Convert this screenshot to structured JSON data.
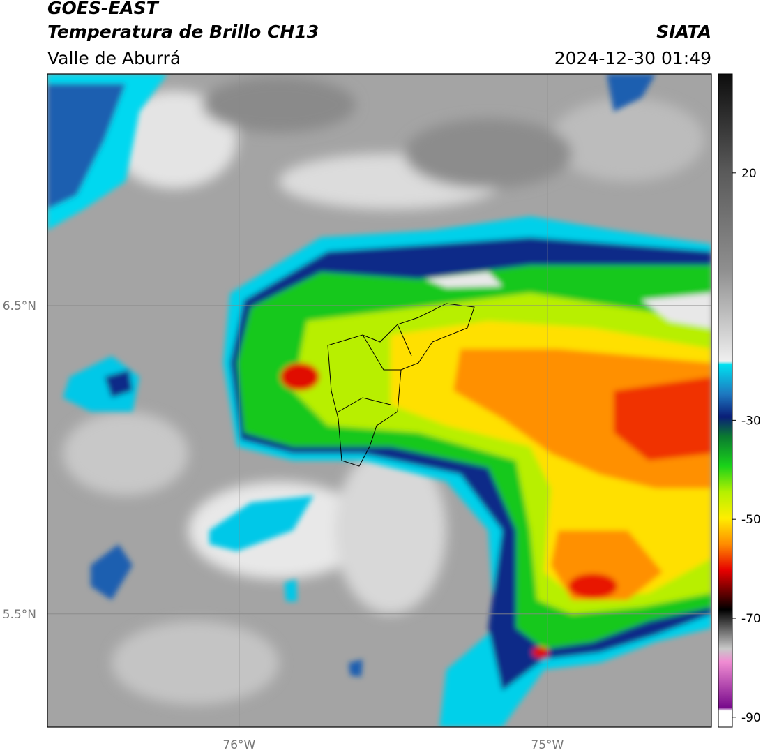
{
  "header": {
    "title": "GOES-EAST",
    "subtitle": "Temperatura de Brillo CH13",
    "region": "Valle de Aburrá",
    "source": "SIATA",
    "datetime": "2024-12-30 01:49"
  },
  "map": {
    "xlim": [
      -76.622,
      -74.468
    ],
    "ylim": [
      5.133,
      7.251
    ],
    "xticks": [
      {
        "value": -76,
        "label": "76°W"
      },
      {
        "value": -75,
        "label": "75°W"
      }
    ],
    "yticks": [
      {
        "value": 6.5,
        "label": "6.5°N"
      },
      {
        "value": 5.5,
        "label": "5.5°N"
      }
    ],
    "grid": true
  },
  "colorbar": {
    "clim": [
      -92,
      40
    ],
    "ticks": [
      20,
      -30,
      -50,
      -70,
      -90
    ]
  }
}
